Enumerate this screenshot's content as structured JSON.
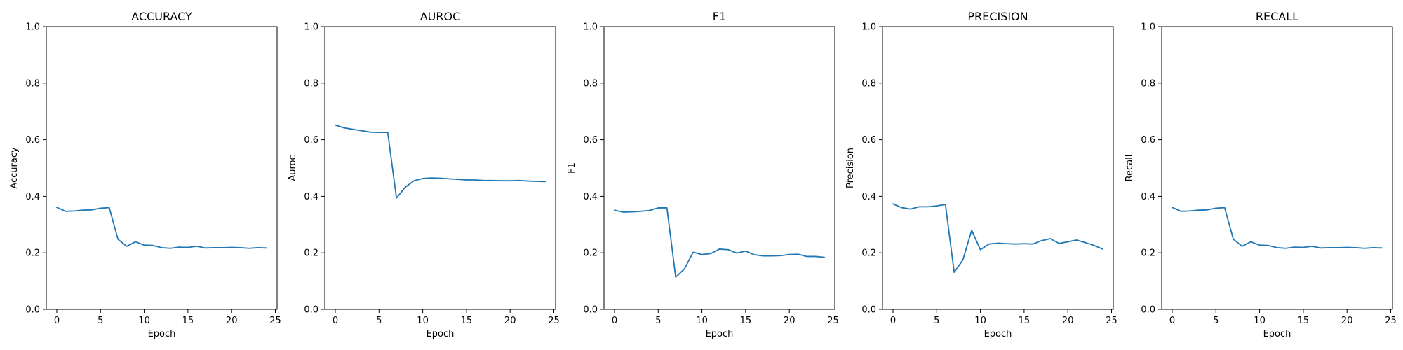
{
  "chart_data": [
    {
      "type": "line",
      "title": "ACCURACY",
      "xlabel": "Epoch",
      "ylabel": "Accuracy",
      "xlim": [
        -1.2,
        25.2
      ],
      "ylim": [
        0.0,
        1.0
      ],
      "xticks": [
        0,
        5,
        10,
        15,
        20,
        25
      ],
      "yticks": [
        0.0,
        0.2,
        0.4,
        0.6,
        0.8,
        1.0
      ],
      "color": "#1f77b4",
      "grid": false,
      "x": [
        0,
        1,
        2,
        3,
        4,
        5,
        6,
        7,
        8,
        9,
        10,
        11,
        12,
        13,
        14,
        15,
        16,
        17,
        18,
        19,
        20,
        21,
        22,
        23,
        24
      ],
      "y": [
        0.361,
        0.347,
        0.348,
        0.351,
        0.352,
        0.358,
        0.36,
        0.248,
        0.223,
        0.239,
        0.227,
        0.226,
        0.218,
        0.216,
        0.22,
        0.219,
        0.223,
        0.217,
        0.218,
        0.218,
        0.219,
        0.218,
        0.216,
        0.218,
        0.217
      ]
    },
    {
      "type": "line",
      "title": "AUROC",
      "xlabel": "Epoch",
      "ylabel": "Auroc",
      "xlim": [
        -1.2,
        25.2
      ],
      "ylim": [
        0.0,
        1.0
      ],
      "xticks": [
        0,
        5,
        10,
        15,
        20,
        25
      ],
      "yticks": [
        0.0,
        0.2,
        0.4,
        0.6,
        0.8,
        1.0
      ],
      "color": "#1f77b4",
      "grid": false,
      "x": [
        0,
        1,
        2,
        3,
        4,
        5,
        6,
        7,
        8,
        9,
        10,
        11,
        12,
        13,
        14,
        15,
        16,
        17,
        18,
        19,
        20,
        21,
        22,
        23,
        24
      ],
      "y": [
        0.652,
        0.642,
        0.637,
        0.632,
        0.627,
        0.626,
        0.626,
        0.394,
        0.432,
        0.455,
        0.463,
        0.465,
        0.464,
        0.462,
        0.46,
        0.458,
        0.458,
        0.456,
        0.456,
        0.455,
        0.455,
        0.456,
        0.454,
        0.453,
        0.452
      ]
    },
    {
      "type": "line",
      "title": "F1",
      "xlabel": "Epoch",
      "ylabel": "F1",
      "xlim": [
        -1.2,
        25.2
      ],
      "ylim": [
        0.0,
        1.0
      ],
      "xticks": [
        0,
        5,
        10,
        15,
        20,
        25
      ],
      "yticks": [
        0.0,
        0.2,
        0.4,
        0.6,
        0.8,
        1.0
      ],
      "color": "#1f77b4",
      "grid": false,
      "x": [
        0,
        1,
        2,
        3,
        4,
        5,
        6,
        7,
        8,
        9,
        10,
        11,
        12,
        13,
        14,
        15,
        16,
        17,
        18,
        19,
        20,
        21,
        22,
        23,
        24
      ],
      "y": [
        0.351,
        0.344,
        0.345,
        0.347,
        0.35,
        0.359,
        0.359,
        0.114,
        0.143,
        0.202,
        0.194,
        0.197,
        0.213,
        0.211,
        0.199,
        0.206,
        0.193,
        0.189,
        0.189,
        0.19,
        0.194,
        0.195,
        0.187,
        0.187,
        0.184
      ]
    },
    {
      "type": "line",
      "title": "PRECISION",
      "xlabel": "Epoch",
      "ylabel": "Precision",
      "xlim": [
        -1.2,
        25.2
      ],
      "ylim": [
        0.0,
        1.0
      ],
      "xticks": [
        0,
        5,
        10,
        15,
        20,
        25
      ],
      "yticks": [
        0.0,
        0.2,
        0.4,
        0.6,
        0.8,
        1.0
      ],
      "color": "#1f77b4",
      "grid": false,
      "x": [
        0,
        1,
        2,
        3,
        4,
        5,
        6,
        7,
        8,
        9,
        10,
        11,
        12,
        13,
        14,
        15,
        16,
        17,
        18,
        19,
        20,
        21,
        22,
        23,
        24
      ],
      "y": [
        0.373,
        0.36,
        0.355,
        0.363,
        0.363,
        0.366,
        0.371,
        0.131,
        0.175,
        0.28,
        0.211,
        0.231,
        0.234,
        0.232,
        0.231,
        0.232,
        0.231,
        0.243,
        0.25,
        0.233,
        0.239,
        0.245,
        0.236,
        0.226,
        0.213
      ]
    },
    {
      "type": "line",
      "title": "RECALL",
      "xlabel": "Epoch",
      "ylabel": "Recall",
      "xlim": [
        -1.2,
        25.2
      ],
      "ylim": [
        0.0,
        1.0
      ],
      "xticks": [
        0,
        5,
        10,
        15,
        20,
        25
      ],
      "yticks": [
        0.0,
        0.2,
        0.4,
        0.6,
        0.8,
        1.0
      ],
      "color": "#1f77b4",
      "grid": false,
      "x": [
        0,
        1,
        2,
        3,
        4,
        5,
        6,
        7,
        8,
        9,
        10,
        11,
        12,
        13,
        14,
        15,
        16,
        17,
        18,
        19,
        20,
        21,
        22,
        23,
        24
      ],
      "y": [
        0.361,
        0.347,
        0.348,
        0.351,
        0.352,
        0.358,
        0.36,
        0.248,
        0.223,
        0.239,
        0.227,
        0.226,
        0.218,
        0.216,
        0.22,
        0.219,
        0.223,
        0.217,
        0.218,
        0.218,
        0.219,
        0.218,
        0.216,
        0.218,
        0.217
      ]
    }
  ]
}
